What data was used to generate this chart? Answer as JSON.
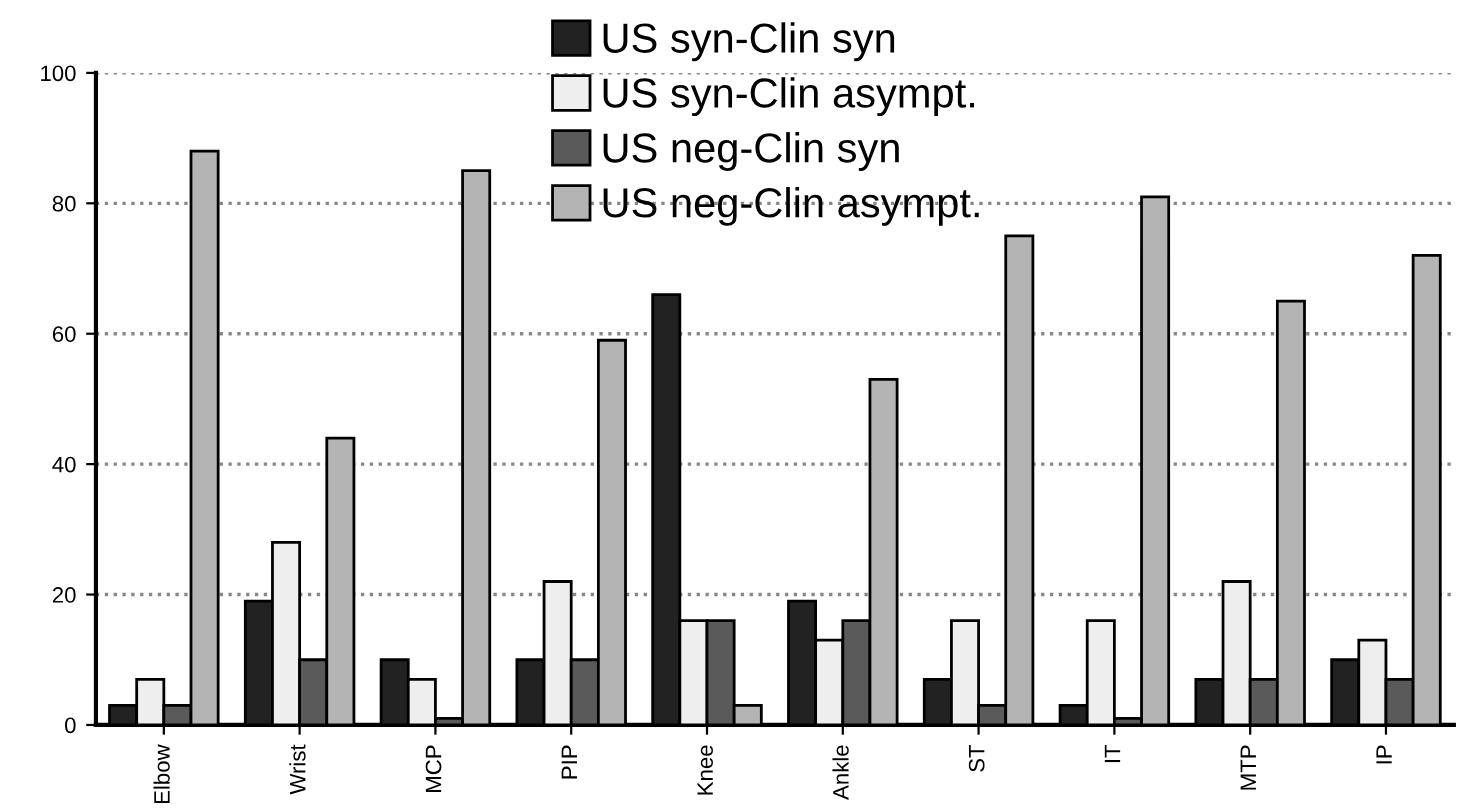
{
  "chart_data": {
    "type": "bar",
    "categories": [
      "Elbow",
      "Wrist",
      "MCP",
      "PIP",
      "Knee",
      "Ankle",
      "ST",
      "IT",
      "MTP",
      "IP"
    ],
    "series": [
      {
        "name": "US syn-Clin syn",
        "color": "#222222",
        "values": [
          3,
          19,
          10,
          10,
          66,
          19,
          7,
          3,
          7,
          10
        ]
      },
      {
        "name": "US syn-Clin asympt.",
        "color": "#eeeeee",
        "values": [
          7,
          28,
          7,
          22,
          16,
          13,
          16,
          16,
          22,
          13
        ]
      },
      {
        "name": "US neg-Clin syn",
        "color": "#5a5a5a",
        "values": [
          3,
          10,
          1,
          10,
          16,
          16,
          3,
          1,
          7,
          7
        ]
      },
      {
        "name": "US neg-Clin asympt.",
        "color": "#b4b4b4",
        "values": [
          88,
          44,
          85,
          59,
          3,
          53,
          75,
          81,
          65,
          72
        ]
      }
    ],
    "ylim": [
      0,
      100
    ],
    "yticks": [
      0,
      20,
      40,
      60,
      80,
      100
    ],
    "grid": "y",
    "legend": "top"
  }
}
